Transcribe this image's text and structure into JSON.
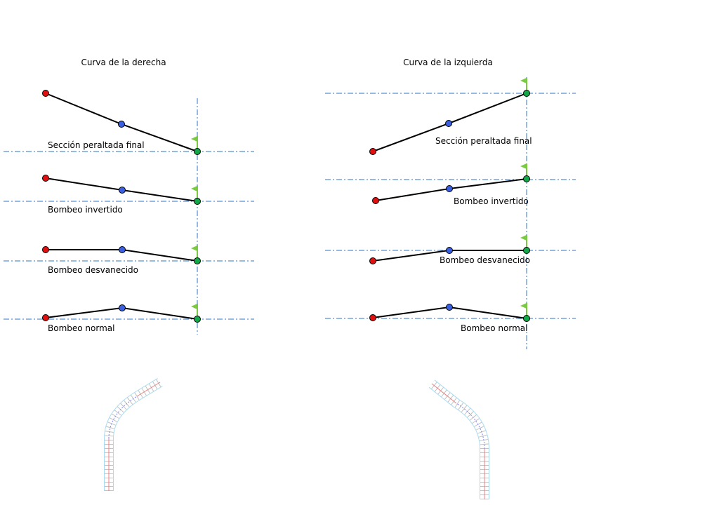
{
  "colors": {
    "axis": "#2e75c8",
    "line": "#000000",
    "edge_point": "#e01010",
    "mid_point": "#3a5fe0",
    "pivot_point": "#12a84a",
    "flag": "#7ac943"
  },
  "left": {
    "title": "Curva de la derecha",
    "sections": [
      {
        "label": "Sección peraltada final"
      },
      {
        "label": "Bombeo invertido"
      },
      {
        "label": "Bombeo desvanecido"
      },
      {
        "label": "Bombeo normal"
      }
    ]
  },
  "right": {
    "title": "Curva de la izquierda",
    "sections": [
      {
        "label": "Sección peraltada final"
      },
      {
        "label": "Bombeo invertido"
      },
      {
        "label": "Bombeo desvanecido"
      },
      {
        "label": "Bombeo normal"
      }
    ]
  }
}
